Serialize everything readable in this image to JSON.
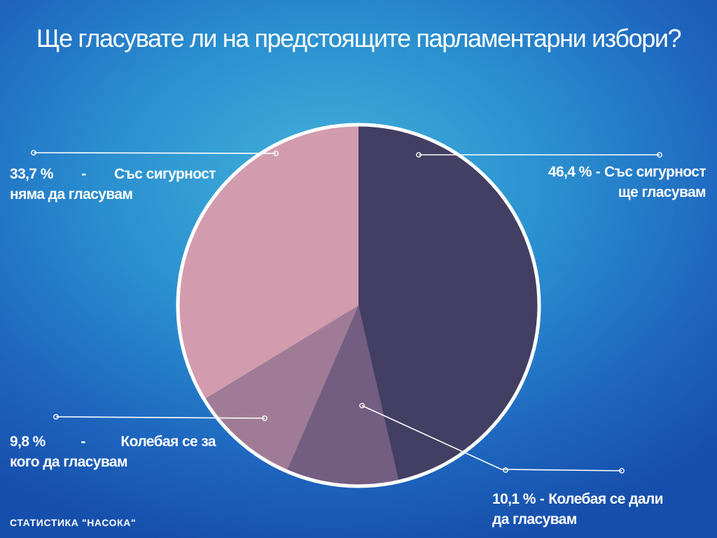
{
  "title": "Ще гласувате ли на предстоящите парламентарни избори?",
  "source": "СТАТИСТИКА \"НАСОКА\"",
  "colors": {
    "outline": "#ffffff",
    "connector": "#ffffff"
  },
  "chart_data": {
    "type": "pie",
    "title": "Ще гласувате ли на предстоящите парламентарни избори?",
    "slices": [
      {
        "percent_label": "46,4 %",
        "value": 46.4,
        "line1": "Със сигурност",
        "line2": "ще гласувам",
        "color": "#433f62"
      },
      {
        "percent_label": "10,1 %",
        "value": 10.1,
        "line1": "Колебая се дали",
        "line2": "да гласувам",
        "color": "#735d81"
      },
      {
        "percent_label": "9,8 %",
        "value": 9.8,
        "line1": "Колебая се за",
        "line2": "кого да гласувам",
        "color": "#a07b96"
      },
      {
        "percent_label": "33,7 %",
        "value": 33.7,
        "line1": "Със сигурност",
        "line2": "няма да гласувам",
        "color": "#d29cae"
      }
    ],
    "start_angle_deg": 0,
    "direction": "clockwise",
    "legend": "none"
  }
}
